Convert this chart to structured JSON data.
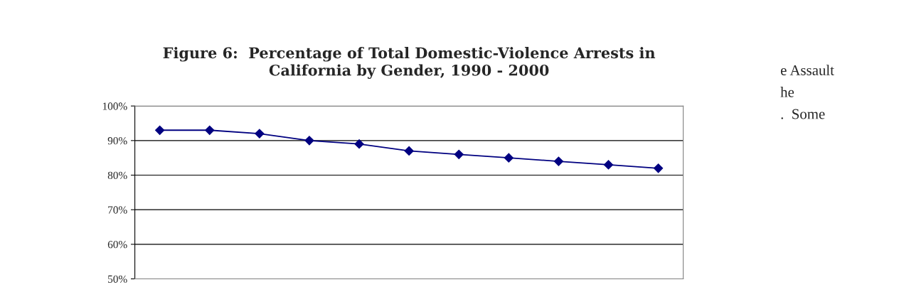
{
  "chart_data": {
    "type": "line",
    "title": "Figure 6:  Percentage of Total Domestic-Violence Arrests in\nCalifornia by Gender, 1990 - 2000",
    "categories": [
      null,
      null,
      null,
      null,
      null,
      null,
      null,
      null,
      null,
      null,
      null
    ],
    "series": [
      {
        "color": "#000080",
        "values": [
          93,
          93,
          92,
          90,
          89,
          87,
          86,
          85,
          84,
          83,
          82
        ]
      }
    ],
    "ylim": [
      50,
      100
    ],
    "yticks": [
      {
        "value": 50,
        "label": "50%"
      },
      {
        "value": 60,
        "label": "60%"
      },
      {
        "value": 70,
        "label": "70%"
      },
      {
        "value": 80,
        "label": "80%"
      },
      {
        "value": 90,
        "label": "90%"
      },
      {
        "value": 100,
        "label": "100%"
      }
    ],
    "grid": "y",
    "marker": "diamond",
    "line_style": "solid",
    "tick_labels": "y",
    "annotations": [
      "e Assault",
      "he",
      ".  Some"
    ]
  }
}
